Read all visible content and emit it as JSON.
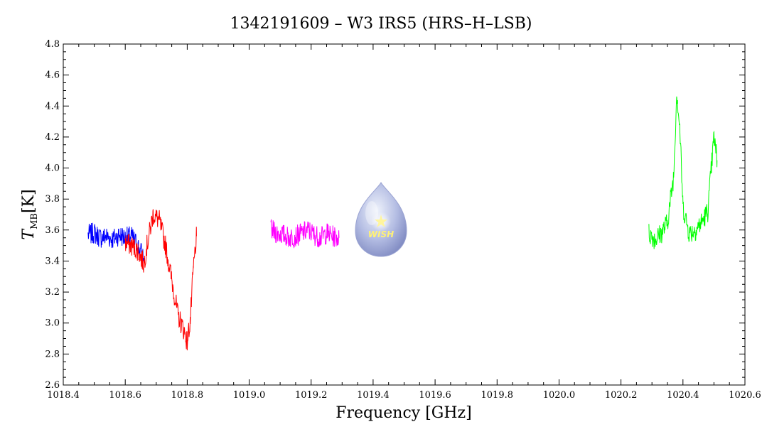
{
  "chart_data": {
    "type": "line",
    "title": "1342191609 – W3 IRS5 (HRS–H–LSB)",
    "xlabel": "Frequency [GHz]",
    "ylabel_main": "T",
    "ylabel_sub": "MB",
    "ylabel_unit": "[K]",
    "xlim": [
      1018.4,
      1020.6
    ],
    "ylim": [
      2.6,
      4.8
    ],
    "x_ticks": [
      "1018.4",
      "1018.6",
      "1018.8",
      "1019.0",
      "1019.2",
      "1019.4",
      "1019.6",
      "1019.8",
      "1020.0",
      "1020.2",
      "1020.4",
      "1020.6"
    ],
    "y_ticks": [
      "2.6",
      "2.8",
      "3.0",
      "3.2",
      "3.4",
      "3.6",
      "3.8",
      "4.0",
      "4.2",
      "4.4",
      "4.6",
      "4.8"
    ],
    "grid": false,
    "series": [
      {
        "color": "#0000ff",
        "points": [
          [
            1018.48,
            3.57
          ],
          [
            1018.5,
            3.58
          ],
          [
            1018.52,
            3.55
          ],
          [
            1018.54,
            3.56
          ],
          [
            1018.56,
            3.54
          ],
          [
            1018.58,
            3.57
          ],
          [
            1018.6,
            3.55
          ],
          [
            1018.62,
            3.56
          ],
          [
            1018.64,
            3.5
          ],
          [
            1018.66,
            3.42
          ]
        ]
      },
      {
        "color": "#ff0000",
        "points": [
          [
            1018.6,
            3.52
          ],
          [
            1018.62,
            3.5
          ],
          [
            1018.64,
            3.47
          ],
          [
            1018.66,
            3.38
          ],
          [
            1018.67,
            3.5
          ],
          [
            1018.69,
            3.7
          ],
          [
            1018.71,
            3.66
          ],
          [
            1018.73,
            3.5
          ],
          [
            1018.75,
            3.28
          ],
          [
            1018.77,
            3.05
          ],
          [
            1018.79,
            2.95
          ],
          [
            1018.8,
            2.88
          ],
          [
            1018.81,
            3.02
          ],
          [
            1018.82,
            3.35
          ],
          [
            1018.83,
            3.56
          ]
        ]
      },
      {
        "color": "#ff00ff",
        "points": [
          [
            1019.07,
            3.6
          ],
          [
            1019.09,
            3.58
          ],
          [
            1019.11,
            3.57
          ],
          [
            1019.13,
            3.55
          ],
          [
            1019.15,
            3.56
          ],
          [
            1019.17,
            3.58
          ],
          [
            1019.19,
            3.6
          ],
          [
            1019.21,
            3.57
          ],
          [
            1019.23,
            3.55
          ],
          [
            1019.25,
            3.58
          ],
          [
            1019.27,
            3.56
          ],
          [
            1019.29,
            3.55
          ]
        ]
      },
      {
        "color": "#00ff00",
        "points": [
          [
            1020.29,
            3.58
          ],
          [
            1020.31,
            3.54
          ],
          [
            1020.33,
            3.58
          ],
          [
            1020.35,
            3.65
          ],
          [
            1020.37,
            3.95
          ],
          [
            1020.38,
            4.5
          ],
          [
            1020.39,
            4.25
          ],
          [
            1020.4,
            3.75
          ],
          [
            1020.42,
            3.58
          ],
          [
            1020.44,
            3.6
          ],
          [
            1020.46,
            3.65
          ],
          [
            1020.48,
            3.72
          ],
          [
            1020.5,
            4.2
          ],
          [
            1020.51,
            4.05
          ]
        ]
      }
    ]
  },
  "logo": {
    "text": "WISH",
    "colors": {
      "drop_light": "#dde4f6",
      "drop_dark": "#8893c7",
      "star": "#fff59d"
    }
  }
}
